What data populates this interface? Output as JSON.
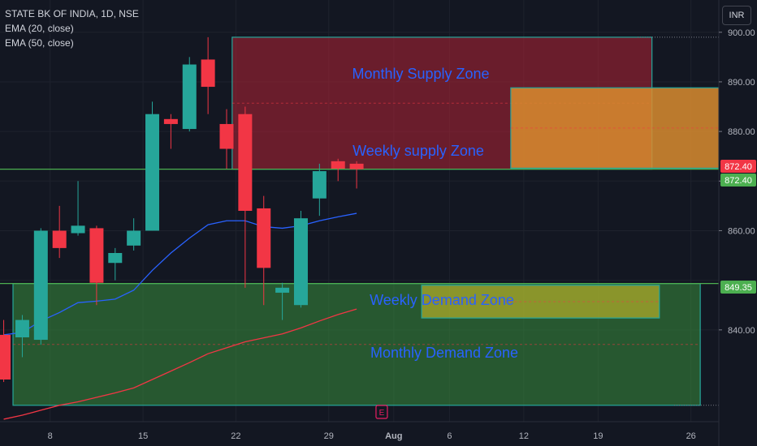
{
  "legend": {
    "symbol": "STATE BK OF INDIA, 1D, NSE",
    "ema20": "EMA (20, close)",
    "ema50": "EMA (50, close)"
  },
  "currency_button": "INR",
  "colors": {
    "background": "#131722",
    "up": "#26a69a",
    "down": "#f23645",
    "ema20": "#2962ff",
    "ema50": "#f23645",
    "level_line": "#4caf50",
    "zone_text": "#2962ff"
  },
  "zones": [
    {
      "label": "Monthly Supply Zone",
      "top": 899.0,
      "bottom": 872.4,
      "x_start": 10.8,
      "x_end": 33.4,
      "fill": "rgba(178,34,52,0.55)",
      "border": "#26a69a"
    },
    {
      "label": "Weekly supply Zone",
      "top": 888.8,
      "bottom": 872.6,
      "x_start": 25.8,
      "x_end": 38.5,
      "fill": "rgba(217,140,47,0.85)",
      "border": "#26a69a"
    },
    {
      "label": "Monthly Demand Zone",
      "top": 849.35,
      "bottom": 824.8,
      "x_start": -1,
      "x_end": 36.0,
      "fill": "rgba(56,142,60,0.55)",
      "border": "#26a69a"
    },
    {
      "label": "Weekly Demand Zone",
      "top": 849.0,
      "bottom": 842.4,
      "x_start": 21.0,
      "x_end": 33.8,
      "fill": "rgba(205,190,40,0.6)",
      "border": "#26a69a"
    }
  ],
  "price_labels": [
    {
      "value": "872.40",
      "bg": "#f23645"
    },
    {
      "value": "872.40",
      "bg": "#4caf50"
    },
    {
      "value": "849.35",
      "bg": "#4caf50"
    }
  ],
  "earnings_marker": "E",
  "chart_data": {
    "type": "candlestick",
    "title": "STATE BK OF INDIA, 1D, NSE",
    "x_ticks": [
      {
        "label": "8",
        "x": 1
      },
      {
        "label": "15",
        "x": 6
      },
      {
        "label": "22",
        "x": 11
      },
      {
        "label": "29",
        "x": 16
      },
      {
        "label": "Aug",
        "x": 19.5
      },
      {
        "label": "6",
        "x": 22.5
      },
      {
        "label": "12",
        "x": 26.5
      },
      {
        "label": "19",
        "x": 30.5
      },
      {
        "label": "26",
        "x": 35.5
      }
    ],
    "y_ticks": [
      840,
      850,
      860,
      870,
      880,
      890,
      900
    ],
    "y_tick_labels": [
      "840.00",
      "",
      "860.00",
      "870.00",
      "880.00",
      "890.00",
      "900.00"
    ],
    "ylim": [
      821.5,
      906.5
    ],
    "xlim": [
      -1.7,
      37.0
    ],
    "candles": [
      {
        "x": -1.5,
        "o": 839.0,
        "h": 842.0,
        "l": 829.5,
        "c": 830.0
      },
      {
        "x": -0.5,
        "o": 838.5,
        "h": 843.0,
        "l": 834.5,
        "c": 842.0
      },
      {
        "x": 0.5,
        "o": 838.0,
        "h": 860.5,
        "l": 837.0,
        "c": 860.0
      },
      {
        "x": 1.5,
        "o": 860.0,
        "h": 865.0,
        "l": 854.5,
        "c": 856.5
      },
      {
        "x": 2.5,
        "o": 859.5,
        "h": 870.0,
        "l": 859.0,
        "c": 861.0
      },
      {
        "x": 3.5,
        "o": 860.5,
        "h": 861.0,
        "l": 845.0,
        "c": 849.5
      },
      {
        "x": 4.5,
        "o": 853.5,
        "h": 856.5,
        "l": 850.0,
        "c": 855.5
      },
      {
        "x": 5.5,
        "o": 857.0,
        "h": 862.5,
        "l": 856.0,
        "c": 860.0
      },
      {
        "x": 6.5,
        "o": 860.0,
        "h": 886.0,
        "l": 860.0,
        "c": 883.5
      },
      {
        "x": 7.5,
        "o": 882.5,
        "h": 883.5,
        "l": 876.5,
        "c": 881.5
      },
      {
        "x": 8.5,
        "o": 880.5,
        "h": 895.0,
        "l": 880.0,
        "c": 893.5
      },
      {
        "x": 9.5,
        "o": 894.5,
        "h": 899.0,
        "l": 883.5,
        "c": 889.0
      },
      {
        "x": 10.5,
        "o": 881.5,
        "h": 884.5,
        "l": 872.5,
        "c": 876.5
      },
      {
        "x": 11.5,
        "o": 883.5,
        "h": 885.0,
        "l": 848.5,
        "c": 864.0
      },
      {
        "x": 12.5,
        "o": 864.5,
        "h": 867.0,
        "l": 845.0,
        "c": 852.5
      },
      {
        "x": 13.5,
        "o": 847.5,
        "h": 849.5,
        "l": 842.0,
        "c": 848.5
      },
      {
        "x": 14.5,
        "o": 845.0,
        "h": 864.0,
        "l": 844.5,
        "c": 862.5
      },
      {
        "x": 15.5,
        "o": 866.5,
        "h": 873.5,
        "l": 863.0,
        "c": 872.0
      },
      {
        "x": 16.5,
        "o": 874.0,
        "h": 874.5,
        "l": 870.0,
        "c": 872.5
      },
      {
        "x": 17.5,
        "o": 873.5,
        "h": 874.0,
        "l": 868.5,
        "c": 872.4
      }
    ],
    "ema20": {
      "x": [
        -1.5,
        -0.5,
        0.5,
        1.5,
        2.5,
        3.5,
        4.5,
        5.5,
        6.5,
        7.5,
        8.5,
        9.5,
        10.5,
        11.5,
        12.5,
        13.5,
        14.5,
        15.5,
        16.5,
        17.5
      ],
      "y": [
        839.0,
        839.5,
        841.8,
        843.5,
        845.5,
        845.8,
        846.2,
        848.0,
        852.0,
        855.5,
        858.5,
        861.2,
        862.0,
        862.0,
        860.8,
        860.5,
        861.0,
        862.0,
        862.8,
        863.5
      ]
    },
    "ema50": {
      "x": [
        -1.5,
        -0.5,
        0.5,
        1.5,
        2.5,
        3.5,
        4.5,
        5.5,
        6.5,
        7.5,
        8.5,
        9.5,
        10.5,
        11.5,
        12.5,
        13.5,
        14.5,
        15.5,
        16.5,
        17.5
      ],
      "y": [
        822.0,
        822.8,
        823.8,
        824.8,
        825.5,
        826.4,
        827.3,
        828.3,
        830.0,
        831.7,
        833.4,
        835.2,
        836.4,
        837.6,
        838.4,
        839.2,
        840.4,
        841.8,
        843.1,
        844.2
      ]
    }
  }
}
